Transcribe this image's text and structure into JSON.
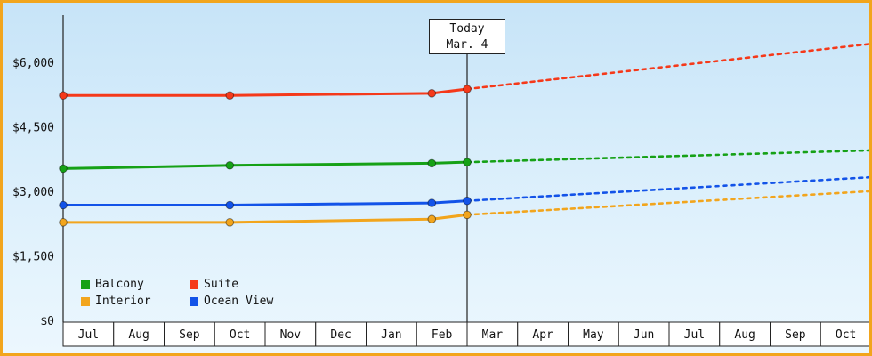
{
  "frame": {
    "border_color": "#f2a51d"
  },
  "chart_data": {
    "type": "line",
    "title": "",
    "xlabel": "",
    "ylabel": "",
    "x_categories": [
      "Jul",
      "Aug",
      "Sep",
      "Oct",
      "Nov",
      "Dec",
      "Jan",
      "Feb",
      "Mar",
      "Apr",
      "May",
      "Jun",
      "Jul",
      "Aug",
      "Sep",
      "Oct"
    ],
    "ylim": [
      0,
      6000
    ],
    "y_ticks": [
      {
        "value": 0,
        "label": "$0"
      },
      {
        "value": 1500,
        "label": "$1,500"
      },
      {
        "value": 3000,
        "label": "$3,000"
      },
      {
        "value": 4500,
        "label": "$4,500"
      },
      {
        "value": 6000,
        "label": "$6,000"
      }
    ],
    "grid": false,
    "today": {
      "month_index": 8,
      "label_line1": "Today",
      "label_line2": "Mar. 4"
    },
    "series": [
      {
        "name": "Interior",
        "color": "#f2a51d",
        "solid": [
          {
            "month": 0,
            "value": 2300
          },
          {
            "month": 3.3,
            "value": 2300
          },
          {
            "month": 7.3,
            "value": 2375
          },
          {
            "month": 8,
            "value": 2475
          }
        ],
        "predicted": [
          {
            "month": 8,
            "value": 2475
          },
          {
            "month": 16,
            "value": 3025
          }
        ]
      },
      {
        "name": "Ocean View",
        "color": "#1353e8",
        "solid": [
          {
            "month": 0,
            "value": 2700
          },
          {
            "month": 3.3,
            "value": 2700
          },
          {
            "month": 7.3,
            "value": 2750
          },
          {
            "month": 8,
            "value": 2800
          }
        ],
        "predicted": [
          {
            "month": 8,
            "value": 2800
          },
          {
            "month": 16,
            "value": 3350
          }
        ]
      },
      {
        "name": "Balcony",
        "color": "#16a116",
        "solid": [
          {
            "month": 0,
            "value": 3550
          },
          {
            "month": 3.3,
            "value": 3625
          },
          {
            "month": 7.3,
            "value": 3675
          },
          {
            "month": 8,
            "value": 3700
          }
        ],
        "predicted": [
          {
            "month": 8,
            "value": 3700
          },
          {
            "month": 16,
            "value": 3975
          }
        ]
      },
      {
        "name": "Suite",
        "color": "#f5391a",
        "solid": [
          {
            "month": 0,
            "value": 5250
          },
          {
            "month": 3.3,
            "value": 5250
          },
          {
            "month": 7.3,
            "value": 5300
          },
          {
            "month": 8,
            "value": 5400
          }
        ],
        "predicted": [
          {
            "month": 8,
            "value": 5400
          },
          {
            "month": 16,
            "value": 6450
          }
        ]
      }
    ],
    "legend": {
      "position": "bottom-left",
      "items": [
        {
          "label": "Balcony",
          "color": "#16a116"
        },
        {
          "label": "Suite",
          "color": "#f5391a"
        },
        {
          "label": "Interior",
          "color": "#f2a51d"
        },
        {
          "label": "Ocean View",
          "color": "#1353e8"
        }
      ]
    }
  }
}
